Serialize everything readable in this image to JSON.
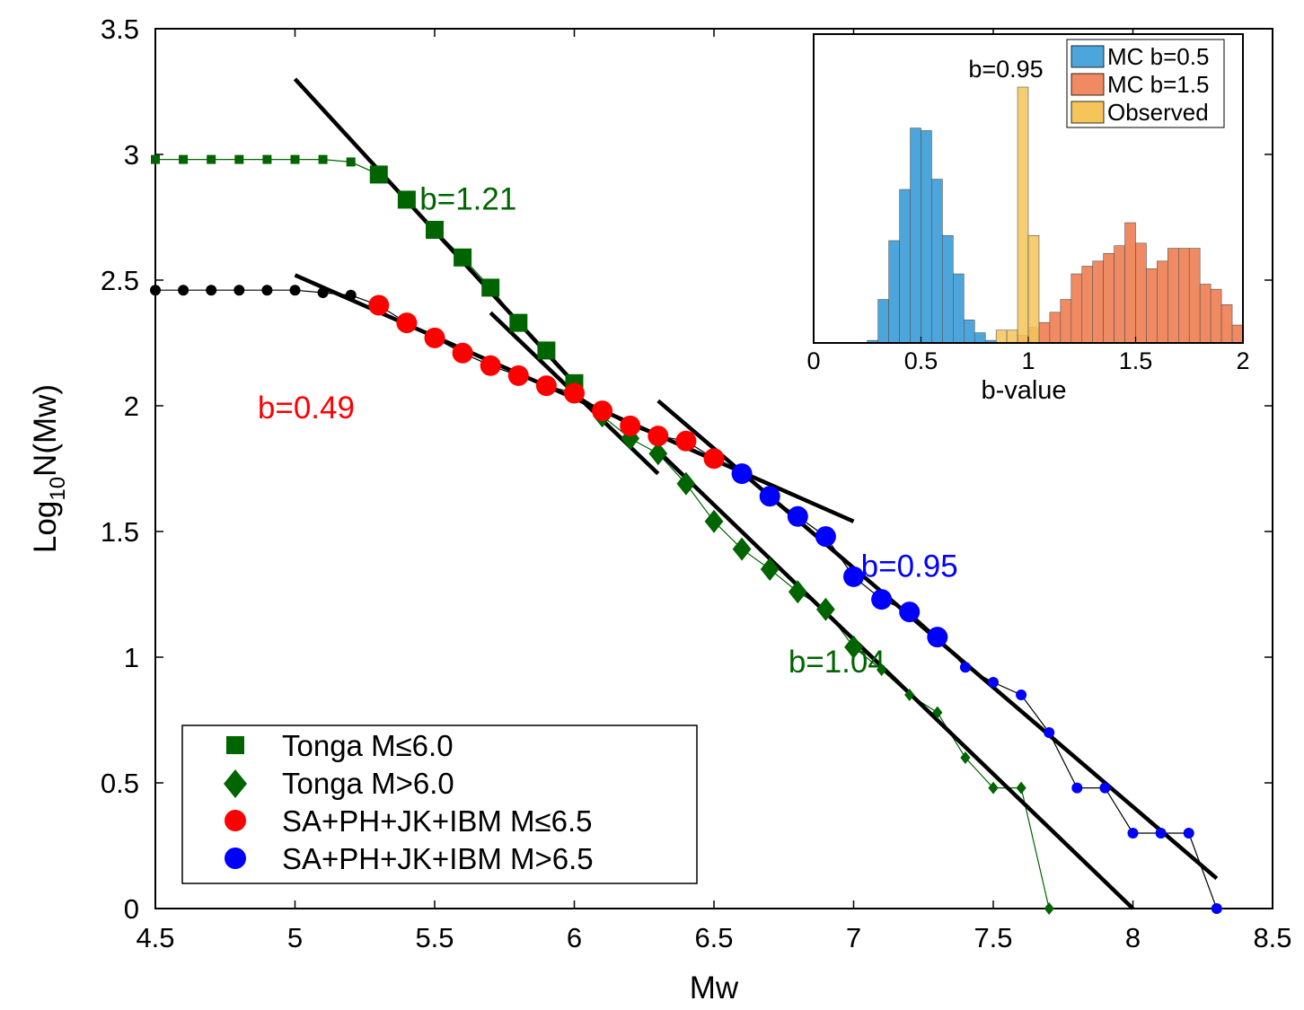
{
  "chart_data": [
    {
      "type": "scatter",
      "xlabel": "Mw",
      "ylabel_main": "Log",
      "ylabel_sub": "10",
      "ylabel_rest": "N(Mw)",
      "xlim": [
        4.5,
        8.5
      ],
      "ylim": [
        0,
        3.5
      ],
      "xticks": [
        "4.5",
        "5",
        "5.5",
        "6",
        "6.5",
        "7",
        "7.5",
        "8",
        "8.5"
      ],
      "yticks": [
        "0",
        "0.5",
        "1",
        "1.5",
        "2",
        "2.5",
        "3",
        "3.5"
      ],
      "colors": {
        "tonga": "#006400",
        "red": "#ff0000",
        "blue": "#0000ff",
        "black": "#000000"
      },
      "series": [
        {
          "name": "Tonga M≤6.0",
          "marker": "square",
          "color": "#006400",
          "x": [
            4.5,
            4.6,
            4.7,
            4.8,
            4.9,
            5.0,
            5.1,
            5.2,
            5.3,
            5.4,
            5.5,
            5.6,
            5.7,
            5.8,
            5.9,
            6.0
          ],
          "y": [
            2.98,
            2.98,
            2.98,
            2.98,
            2.98,
            2.98,
            2.98,
            2.97,
            2.92,
            2.82,
            2.7,
            2.59,
            2.47,
            2.33,
            2.22,
            2.09
          ],
          "big_from": 5.3
        },
        {
          "name": "Tonga M>6.0",
          "marker": "diamond",
          "color": "#006400",
          "x": [
            6.1,
            6.2,
            6.3,
            6.4,
            6.5,
            6.6,
            6.7,
            6.8,
            6.9,
            7.0,
            7.1,
            7.2,
            7.3,
            7.4,
            7.5,
            7.6,
            7.7
          ],
          "y": [
            1.96,
            1.87,
            1.81,
            1.69,
            1.54,
            1.43,
            1.35,
            1.26,
            1.19,
            1.04,
            0.95,
            0.85,
            0.78,
            0.6,
            0.48,
            0.48,
            0.0
          ],
          "big_until": 7.0
        },
        {
          "name": "SA+PH+JK+IBM M≤6.5",
          "marker": "circle",
          "color": "#ff0000",
          "x": [
            4.5,
            4.6,
            4.7,
            4.8,
            4.9,
            5.0,
            5.1,
            5.2,
            5.3,
            5.4,
            5.5,
            5.6,
            5.7,
            5.8,
            5.9,
            6.0,
            6.1,
            6.2,
            6.3,
            6.4,
            6.5
          ],
          "y": [
            2.46,
            2.46,
            2.46,
            2.46,
            2.46,
            2.46,
            2.45,
            2.44,
            2.4,
            2.33,
            2.27,
            2.21,
            2.16,
            2.12,
            2.08,
            2.05,
            1.98,
            1.92,
            1.88,
            1.86,
            1.79
          ],
          "big_from": 5.3
        },
        {
          "name": "SA+PH+JK+IBM M>6.5",
          "marker": "circle",
          "color": "#0000ff",
          "x": [
            6.6,
            6.7,
            6.8,
            6.9,
            7.0,
            7.1,
            7.2,
            7.3,
            7.4,
            7.5,
            7.6,
            7.7,
            7.8,
            7.9,
            8.0,
            8.1,
            8.2,
            8.3
          ],
          "y": [
            1.73,
            1.64,
            1.56,
            1.48,
            1.32,
            1.23,
            1.18,
            1.08,
            0.96,
            0.9,
            0.85,
            0.7,
            0.48,
            0.48,
            0.3,
            0.3,
            0.3,
            0.0
          ],
          "big_until": 7.3
        }
      ],
      "fit_lines": [
        {
          "b": "b=1.21",
          "x": [
            5.0,
            6.0
          ],
          "y": [
            3.3,
            2.09
          ]
        },
        {
          "b": "b=1.04",
          "x": [
            5.7,
            6.3
          ],
          "y": [
            2.37,
            1.73
          ]
        },
        {
          "b": "b=0.49",
          "x": [
            5.0,
            7.0
          ],
          "y": [
            2.52,
            1.54
          ]
        },
        {
          "b": "b=0.95",
          "x": [
            6.3,
            8.3
          ],
          "y": [
            2.02,
            0.12
          ]
        },
        {
          "b": "b=1.04",
          "x": [
            6.3,
            8.0
          ],
          "y": [
            1.82,
            0.0
          ]
        }
      ],
      "annotations": [
        {
          "text": "b=1.21",
          "x": 5.62,
          "y": 2.78,
          "color": "#006400"
        },
        {
          "text": "b=0.49",
          "x": 5.04,
          "y": 1.95,
          "color": "#ff0000"
        },
        {
          "text": "b=0.95",
          "x": 7.2,
          "y": 1.32,
          "color": "#0000ff"
        },
        {
          "text": "b=1.04",
          "x": 6.94,
          "y": 0.94,
          "color": "#006400"
        }
      ],
      "legend": {
        "placement": "bottom-left",
        "entries": [
          "Tonga M≤6.0",
          "Tonga M>6.0",
          "SA+PH+JK+IBM M≤6.5",
          "SA+PH+JK+IBM M>6.5"
        ]
      },
      "grid": false
    },
    {
      "type": "bar",
      "placement": "inset top-right",
      "xlabel": "b-value",
      "xlim": [
        0,
        2
      ],
      "xticks": [
        "0",
        "0.5",
        "1",
        "1.5",
        "2"
      ],
      "bin_width": 0.05,
      "annotation": "b=0.95",
      "legend_placement": "top-right",
      "series": [
        {
          "name": "MC b=0.5",
          "color": "#4da6db",
          "bin_starts": [
            0.25,
            0.3,
            0.35,
            0.4,
            0.45,
            0.5,
            0.55,
            0.6,
            0.65,
            0.7,
            0.75,
            0.8
          ],
          "values": [
            0.01,
            0.17,
            0.4,
            0.6,
            0.84,
            0.83,
            0.64,
            0.42,
            0.27,
            0.09,
            0.04,
            0.01
          ]
        },
        {
          "name": "MC b=1.5",
          "color": "#f08a62",
          "bin_starts": [
            0.95,
            1.0,
            1.05,
            1.1,
            1.15,
            1.2,
            1.25,
            1.3,
            1.35,
            1.4,
            1.45,
            1.5,
            1.55,
            1.6,
            1.65,
            1.7,
            1.75,
            1.8,
            1.85,
            1.9,
            1.95
          ],
          "values": [
            0.03,
            0.06,
            0.08,
            0.12,
            0.17,
            0.27,
            0.3,
            0.32,
            0.35,
            0.38,
            0.47,
            0.39,
            0.29,
            0.32,
            0.37,
            0.37,
            0.37,
            0.23,
            0.21,
            0.15,
            0.07
          ]
        },
        {
          "name": "Observed",
          "color": "#f5c45a",
          "bin_starts": [
            0.85,
            0.9,
            0.95,
            1.0
          ],
          "values": [
            0.05,
            0.05,
            1.0,
            0.42
          ]
        }
      ]
    }
  ]
}
